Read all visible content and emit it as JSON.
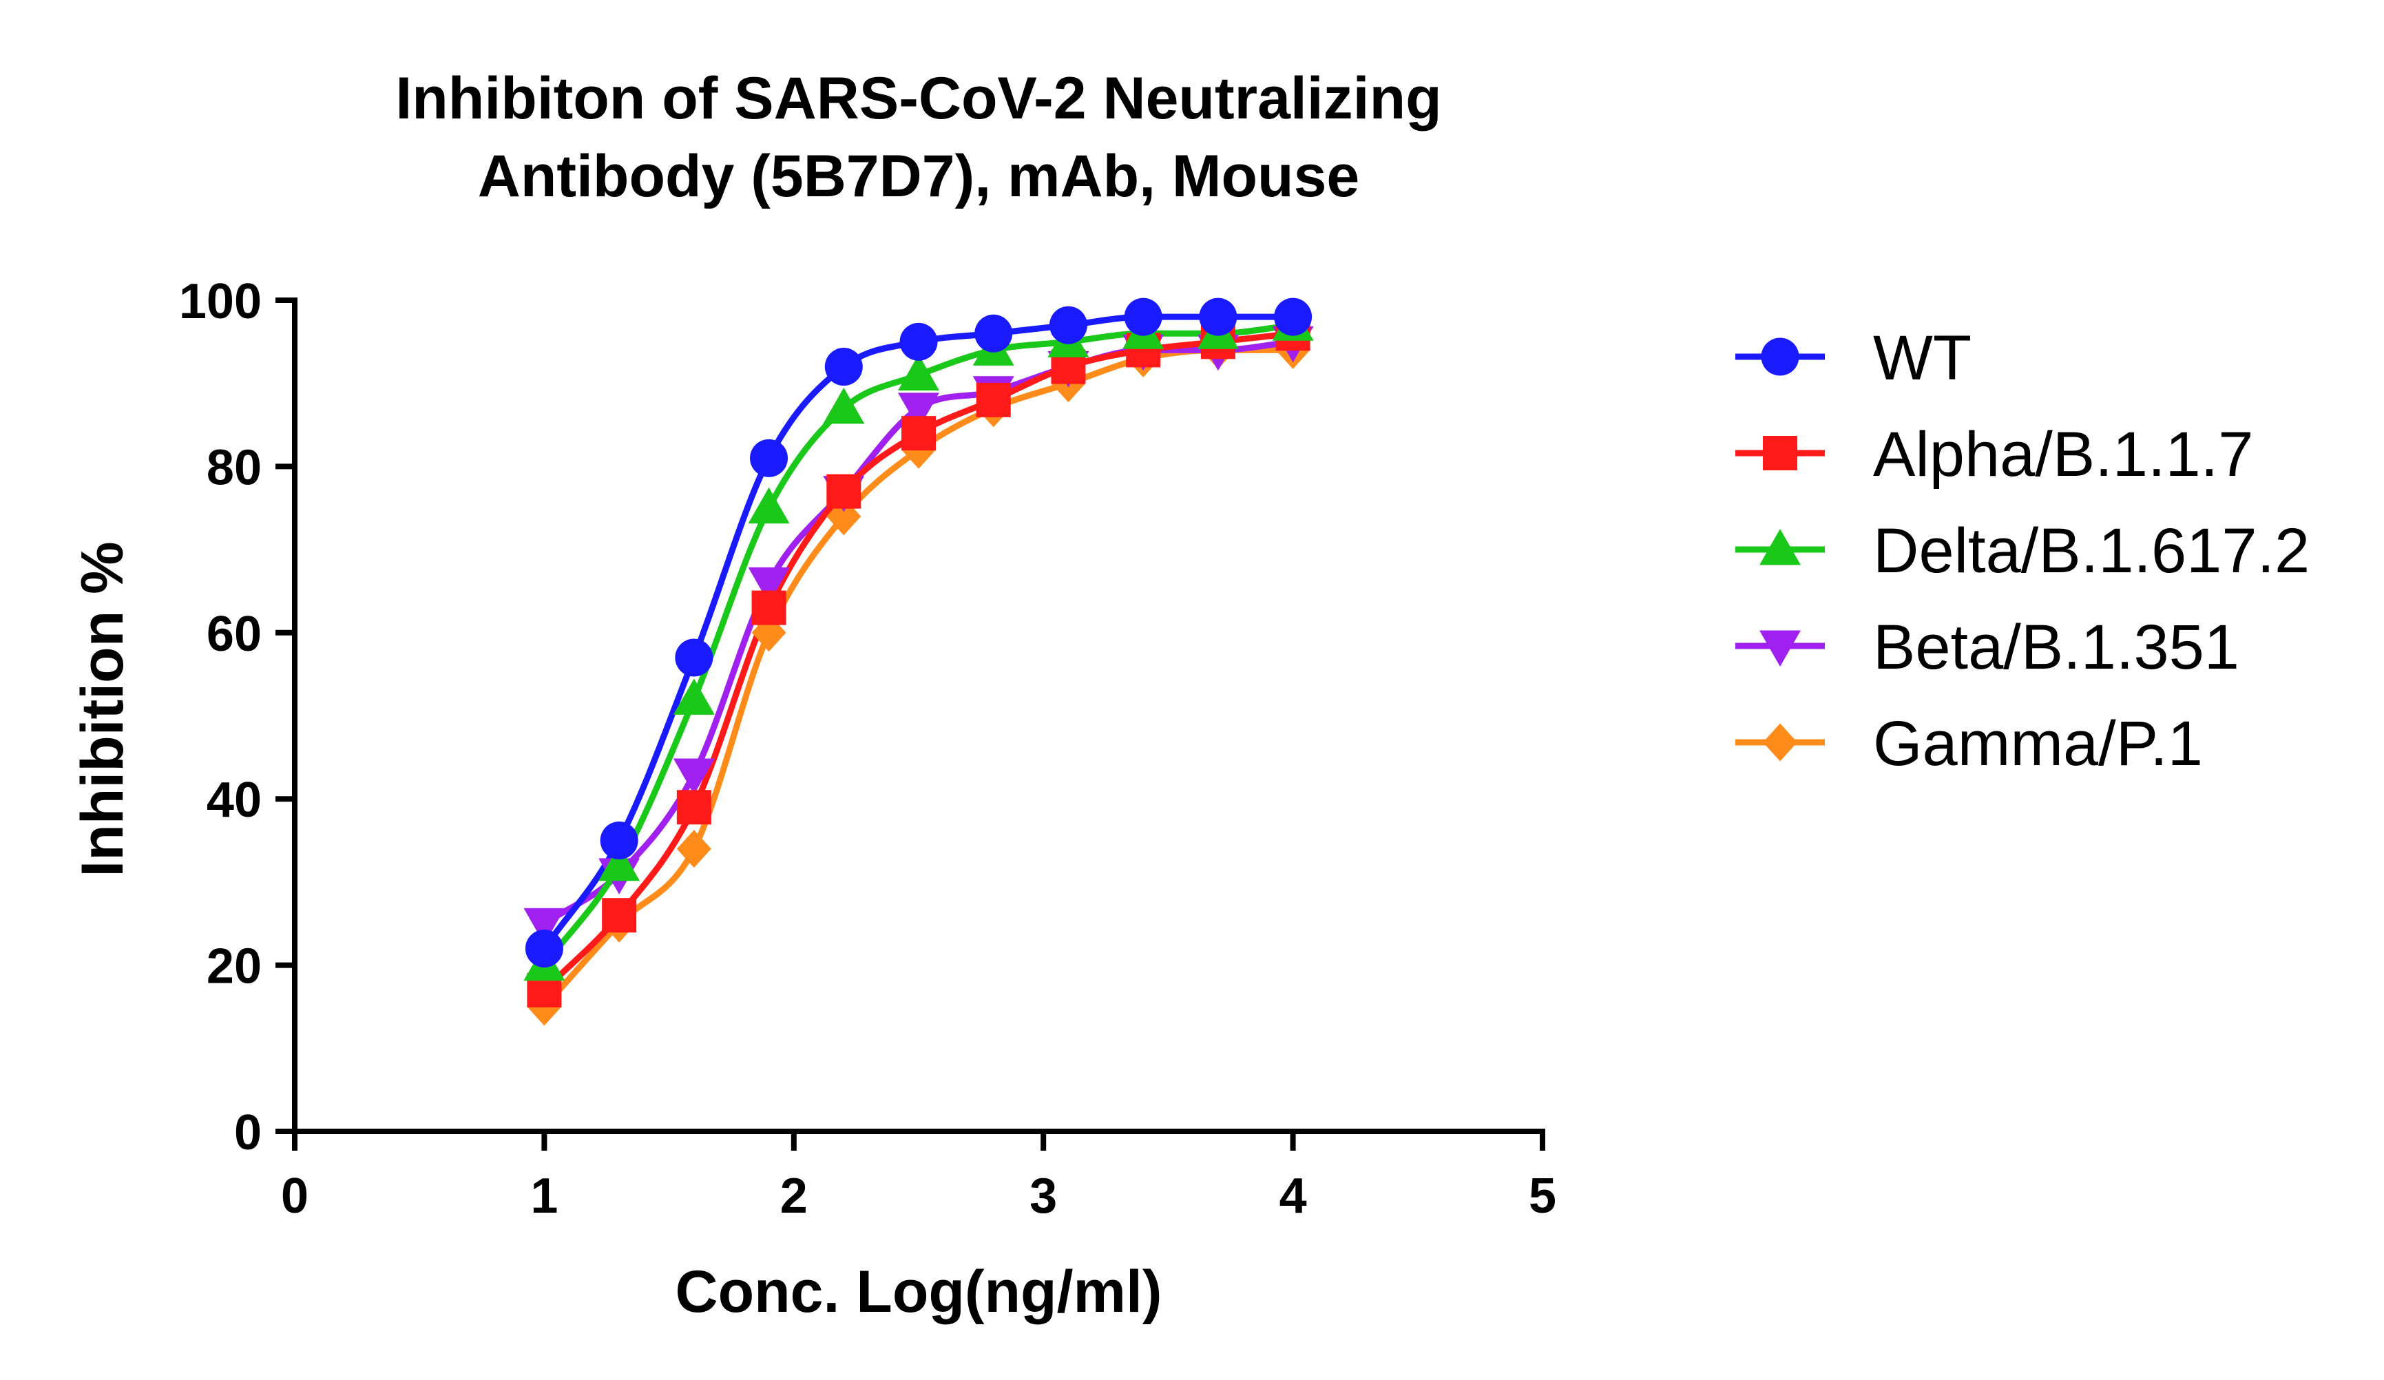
{
  "chart_data": {
    "type": "scatter",
    "title_lines": [
      "Inhibiton of SARS-CoV-2 Neutralizing",
      "Antibody (5B7D7), mAb, Mouse"
    ],
    "xlabel": "Conc. Log(ng/ml)",
    "ylabel": "Inhibition %",
    "xlim": [
      0,
      5
    ],
    "ylim": [
      0,
      100
    ],
    "xticks": [
      "0",
      "1",
      "2",
      "3",
      "4",
      "5"
    ],
    "yticks": [
      "0",
      "20",
      "40",
      "60",
      "80",
      "100"
    ],
    "legend_position": "right",
    "fit": "sigmoidal curve",
    "x": [
      1.0,
      1.3,
      1.6,
      1.9,
      2.2,
      2.5,
      2.8,
      3.1,
      3.4,
      3.7,
      4.0
    ],
    "series": [
      {
        "name": "WT",
        "color": "#1a1aff",
        "marker": "circle",
        "values": [
          22,
          35,
          57,
          81,
          92,
          95,
          96,
          97,
          98,
          98,
          98
        ]
      },
      {
        "name": "Alpha/B.1.1.7",
        "color": "#ff1a1a",
        "marker": "square",
        "values": [
          17,
          26,
          39,
          63,
          77,
          84,
          88,
          92,
          94,
          95,
          96
        ]
      },
      {
        "name": "Delta/B.1.617.2",
        "color": "#19c819",
        "marker": "triangle-up",
        "values": [
          20,
          32,
          52,
          75,
          87,
          91,
          94,
          95,
          96,
          96,
          97
        ]
      },
      {
        "name": "Beta/B.1.351",
        "color": "#a020f0",
        "marker": "triangle-down",
        "values": [
          25,
          31,
          43,
          66,
          77,
          87,
          89,
          92,
          94,
          94,
          95
        ]
      },
      {
        "name": "Gamma/P.1",
        "color": "#ff8c1a",
        "marker": "diamond",
        "values": [
          15,
          25,
          34,
          60,
          74,
          82,
          87,
          90,
          93,
          94,
          94
        ]
      }
    ]
  }
}
